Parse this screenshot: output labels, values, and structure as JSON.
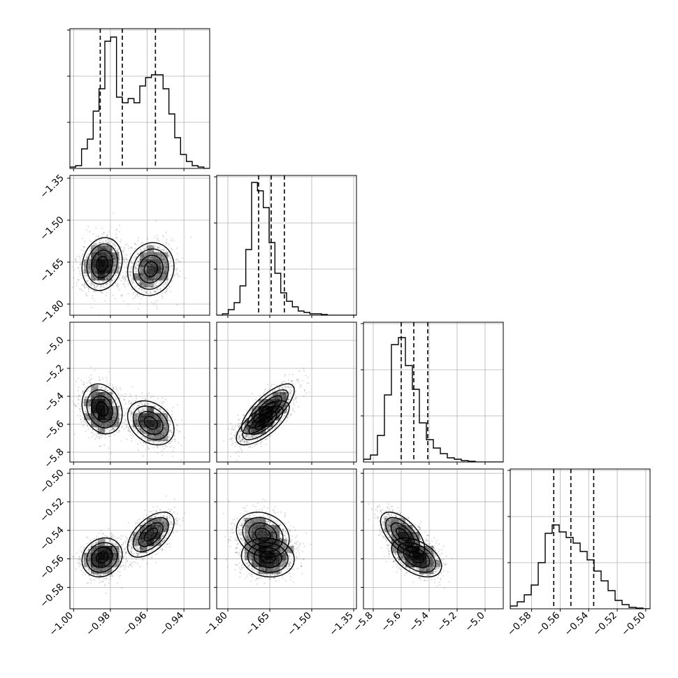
{
  "chart_data": {
    "type": "corner",
    "params": [
      {
        "range": [
          -1.002,
          -0.926
        ],
        "ticks": [
          -1.0,
          -0.98,
          -0.96,
          -0.94
        ],
        "tick_labels": [
          "−1.00",
          "−0.98",
          "−0.96",
          "−0.94"
        ],
        "quantiles": [
          -0.9855,
          -0.9735,
          -0.9555
        ],
        "hist": [
          0.01,
          0.02,
          0.14,
          0.21,
          0.41,
          0.57,
          0.91,
          0.94,
          0.51,
          0.47,
          0.5,
          0.47,
          0.59,
          0.65,
          0.67,
          0.67,
          0.57,
          0.39,
          0.22,
          0.1,
          0.05,
          0.02,
          0.01,
          0.0
        ]
      },
      {
        "range": [
          -1.84,
          -1.34
        ],
        "ticks": [
          -1.8,
          -1.65,
          -1.5,
          -1.35
        ],
        "tick_labels": [
          "−1.80",
          "−1.65",
          "−1.50",
          "−1.35"
        ],
        "quantiles": [
          -1.69,
          -1.645,
          -1.598
        ],
        "hist": [
          0.0,
          0.01,
          0.04,
          0.09,
          0.21,
          0.47,
          0.95,
          0.89,
          0.77,
          0.52,
          0.3,
          0.16,
          0.1,
          0.06,
          0.03,
          0.02,
          0.01,
          0.01,
          0.005,
          0.0,
          0.0,
          0.0,
          0.0,
          0.0
        ]
      },
      {
        "range": [
          -5.87,
          -4.87
        ],
        "ticks": [
          -5.8,
          -5.6,
          -5.4,
          -5.2,
          -5.0
        ],
        "tick_labels": [
          "−5.8",
          "−5.6",
          "−5.4",
          "−5.2",
          "−5.0"
        ],
        "quantiles": [
          -5.6,
          -5.51,
          -5.41
        ],
        "hist": [
          0.02,
          0.05,
          0.19,
          0.48,
          0.84,
          0.89,
          0.69,
          0.52,
          0.28,
          0.16,
          0.1,
          0.06,
          0.03,
          0.02,
          0.01,
          0.005,
          0.0,
          0.0,
          0.0,
          0.0
        ]
      },
      {
        "range": [
          -0.595,
          -0.497
        ],
        "ticks": [
          -0.58,
          -0.56,
          -0.54,
          -0.52,
          -0.5
        ],
        "tick_labels": [
          "−0.58",
          "−0.56",
          "−0.54",
          "−0.52",
          "−0.50"
        ],
        "quantiles": [
          -0.5645,
          -0.5525,
          -0.5365
        ],
        "hist": [
          0.02,
          0.05,
          0.1,
          0.17,
          0.33,
          0.54,
          0.6,
          0.55,
          0.51,
          0.47,
          0.41,
          0.35,
          0.27,
          0.2,
          0.13,
          0.06,
          0.03,
          0.01,
          0.005,
          0.0
        ]
      }
    ],
    "modes": [
      {
        "center": [
          -0.9845,
          -1.657,
          -5.49,
          -0.559
        ],
        "sd": [
          0.0052,
          0.045,
          0.085,
          0.0065
        ],
        "weight": 0.55,
        "corr": {
          "1-0": 0.15,
          "2-0": -0.2,
          "2-1": 0.75,
          "3-0": 0.15,
          "3-1": -0.1,
          "3-2": -0.45
        }
      },
      {
        "center": [
          -0.958,
          -1.675,
          -5.59,
          -0.543
        ],
        "sd": [
          0.006,
          0.045,
          0.075,
          0.0075
        ],
        "weight": 0.45,
        "corr": {
          "1-0": 0.1,
          "2-0": -0.3,
          "2-1": 0.7,
          "3-0": 0.55,
          "3-1": -0.2,
          "3-2": -0.6
        }
      }
    ],
    "contour_levels": 4,
    "grid": true,
    "show_titles": false
  }
}
